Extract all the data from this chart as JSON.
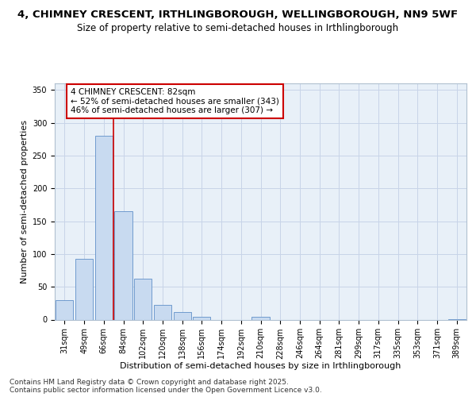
{
  "title": "4, CHIMNEY CRESCENT, IRTHLINGBOROUGH, WELLINGBOROUGH, NN9 5WF",
  "subtitle": "Size of property relative to semi-detached houses in Irthlingborough",
  "xlabel": "Distribution of semi-detached houses by size in Irthlingborough",
  "ylabel": "Number of semi-detached properties",
  "bar_color": "#c8daf0",
  "bar_edge_color": "#6090c8",
  "categories": [
    "31sqm",
    "49sqm",
    "66sqm",
    "84sqm",
    "102sqm",
    "120sqm",
    "138sqm",
    "156sqm",
    "174sqm",
    "192sqm",
    "210sqm",
    "228sqm",
    "246sqm",
    "264sqm",
    "281sqm",
    "299sqm",
    "317sqm",
    "335sqm",
    "353sqm",
    "371sqm",
    "389sqm"
  ],
  "values": [
    30,
    93,
    280,
    165,
    62,
    22,
    11,
    4,
    0,
    0,
    4,
    0,
    0,
    0,
    0,
    0,
    0,
    0,
    0,
    0,
    1
  ],
  "ylim": [
    0,
    360
  ],
  "yticks": [
    0,
    50,
    100,
    150,
    200,
    250,
    300,
    350
  ],
  "annotation_line1": "4 CHIMNEY CRESCENT: 82sqm",
  "annotation_line2": "← 52% of semi-detached houses are smaller (343)",
  "annotation_line3": "46% of semi-detached houses are larger (307) →",
  "annotation_box_color": "#ffffff",
  "annotation_box_edge_color": "#cc0000",
  "vline_color": "#cc0000",
  "grid_color": "#c8d4e8",
  "background_color": "#e8f0f8",
  "footer_text": "Contains HM Land Registry data © Crown copyright and database right 2025.\nContains public sector information licensed under the Open Government Licence v3.0.",
  "title_fontsize": 9.5,
  "subtitle_fontsize": 8.5,
  "axis_label_fontsize": 8,
  "tick_fontsize": 7,
  "annotation_fontsize": 7.5,
  "footer_fontsize": 6.5
}
